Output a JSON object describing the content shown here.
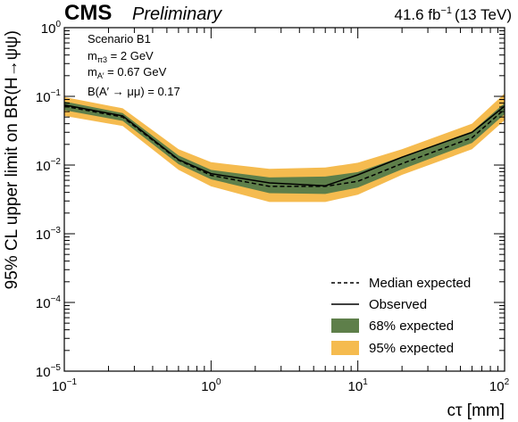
{
  "header": {
    "experiment": "CMS",
    "status": "Preliminary",
    "lumi_value": "41.6 fb",
    "lumi_exp": "−1",
    "energy": "(13 TeV)"
  },
  "info": {
    "scenario": "Scenario B1",
    "mpi_sym": "m",
    "mpi_sub": "π3",
    "mpi_val": " = 2 GeV",
    "ma_sym": "m",
    "ma_sub": "A′",
    "ma_val": " = 0.67 GeV",
    "br": "B(A′ → μμ) = 0.17"
  },
  "chart_data": {
    "type": "area",
    "xlabel": "cτ [mm]",
    "ylabel": "95% CL upper limit on BR(H→ψψ)",
    "x_scale": "log",
    "y_scale": "log",
    "xlim": [
      0.1,
      100
    ],
    "ylim": [
      1e-05,
      1
    ],
    "x_ticks": [
      {
        "value": 0.1,
        "base": "10",
        "exp": "−1"
      },
      {
        "value": 1,
        "base": "10",
        "exp": "0"
      },
      {
        "value": 10,
        "base": "10",
        "exp": "1"
      },
      {
        "value": 100,
        "base": "10",
        "exp": "2"
      }
    ],
    "y_ticks": [
      {
        "value": 1,
        "base": "10",
        "exp": "0"
      },
      {
        "value": 0.1,
        "base": "10",
        "exp": "−1"
      },
      {
        "value": 0.01,
        "base": "10",
        "exp": "−2"
      },
      {
        "value": 0.001,
        "base": "10",
        "exp": "−3"
      },
      {
        "value": 0.0001,
        "base": "10",
        "exp": "−4"
      },
      {
        "value": 1e-05,
        "base": "10",
        "exp": "−5"
      }
    ],
    "x": [
      0.1,
      0.25,
      0.6,
      1.0,
      2.5,
      6.0,
      10.0,
      20.0,
      60.0,
      100.0
    ],
    "series": [
      {
        "name": "Median expected",
        "style": "dashed",
        "color": "#000000",
        "values": [
          0.072,
          0.05,
          0.0118,
          0.0071,
          0.0049,
          0.0049,
          0.0058,
          0.0105,
          0.025,
          0.065
        ]
      },
      {
        "name": "Observed",
        "style": "solid",
        "color": "#000000",
        "values": [
          0.075,
          0.052,
          0.012,
          0.0075,
          0.0055,
          0.005,
          0.0072,
          0.013,
          0.03,
          0.072
        ]
      },
      {
        "name": "68% expected",
        "style": "band",
        "color": "#5e7f4a",
        "lower": [
          0.063,
          0.044,
          0.0103,
          0.0062,
          0.0039,
          0.0038,
          0.0047,
          0.0087,
          0.021,
          0.055
        ],
        "upper": [
          0.084,
          0.057,
          0.0138,
          0.0085,
          0.0066,
          0.0068,
          0.0079,
          0.0133,
          0.031,
          0.08
        ]
      },
      {
        "name": "95% expected",
        "style": "band",
        "color": "#f5bb4f",
        "lower": [
          0.052,
          0.037,
          0.0085,
          0.0049,
          0.0029,
          0.0029,
          0.0037,
          0.0072,
          0.017,
          0.045
        ],
        "upper": [
          0.098,
          0.067,
          0.017,
          0.011,
          0.0088,
          0.0092,
          0.0108,
          0.017,
          0.04,
          0.11
        ]
      }
    ],
    "legend": {
      "position": "bottom-right",
      "entries": [
        "Median expected",
        "Observed",
        "68% expected",
        "95% expected"
      ]
    },
    "grid": false
  }
}
